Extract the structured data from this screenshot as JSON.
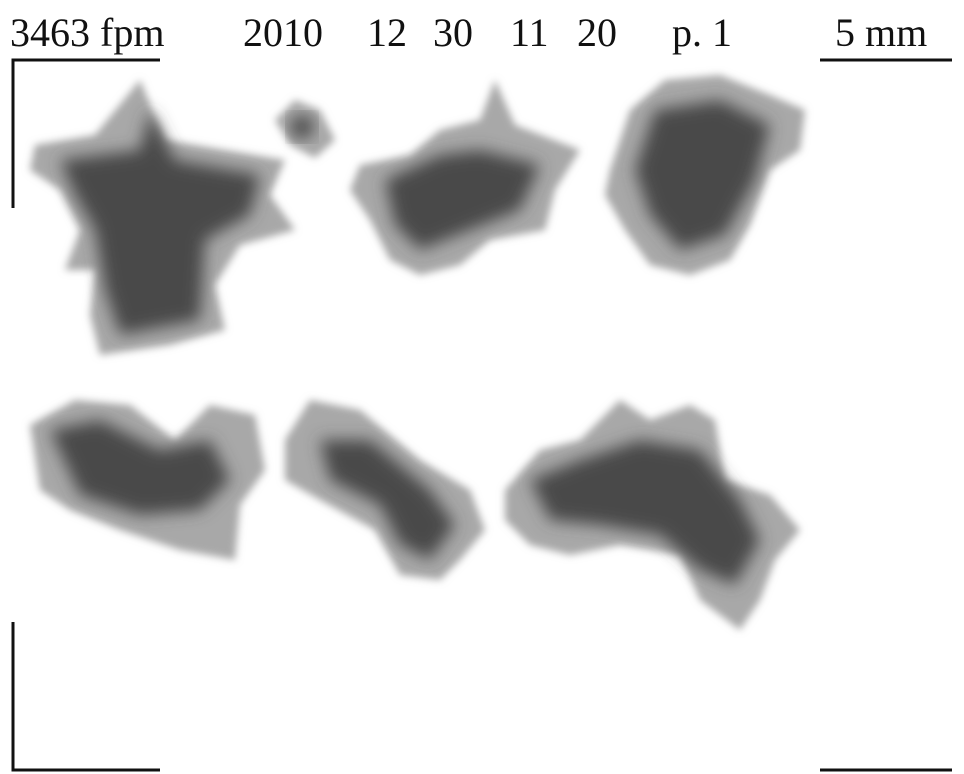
{
  "header": {
    "frame_rate": "3463 fpm",
    "date_time": [
      "2010",
      "12",
      "30",
      "11",
      "20"
    ],
    "page": "p. 1",
    "scale": "5 mm"
  }
}
